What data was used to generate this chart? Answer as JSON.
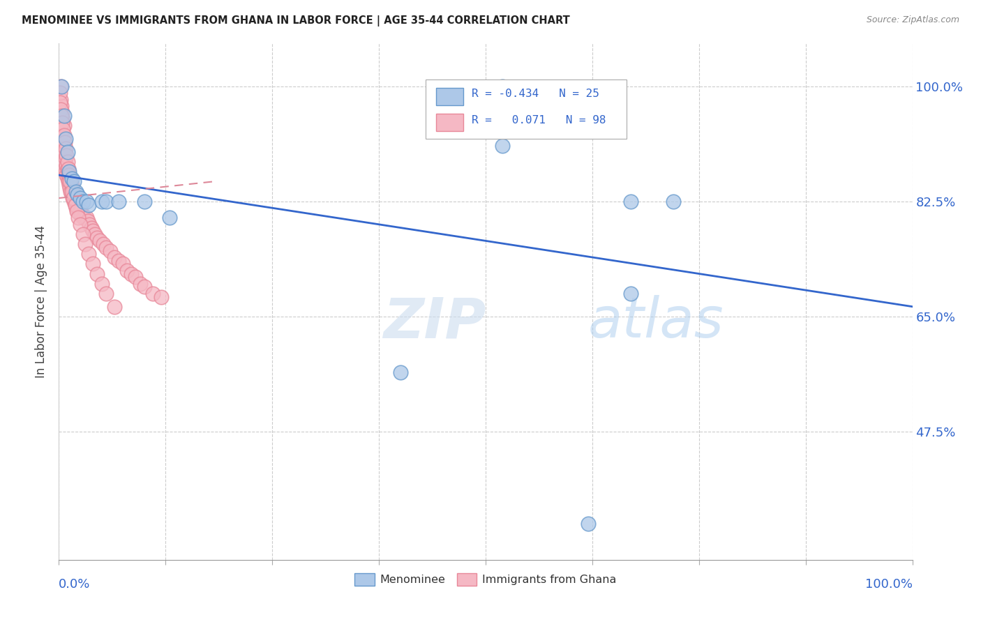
{
  "title": "MENOMINEE VS IMMIGRANTS FROM GHANA IN LABOR FORCE | AGE 35-44 CORRELATION CHART",
  "source": "Source: ZipAtlas.com",
  "ylabel": "In Labor Force | Age 35-44",
  "y_tick_labels": [
    "47.5%",
    "65.0%",
    "82.5%",
    "100.0%"
  ],
  "y_tick_values": [
    0.475,
    0.65,
    0.825,
    1.0
  ],
  "x_min": 0.0,
  "x_max": 1.0,
  "y_min": 0.28,
  "y_max": 1.065,
  "menominee_color": "#adc8e8",
  "ghana_color": "#f5b8c4",
  "menominee_edge_color": "#6699cc",
  "ghana_edge_color": "#e88899",
  "line_blue_color": "#3366cc",
  "line_pink_color": "#dd8899",
  "watermark_zip": "ZIP",
  "watermark_atlas": "atlas",
  "legend_text1": "R = -0.434   N = 25",
  "legend_text2": "R =   0.071   N = 98",
  "menominee_x": [
    0.003,
    0.006,
    0.008,
    0.01,
    0.012,
    0.015,
    0.018,
    0.02,
    0.022,
    0.025,
    0.028,
    0.032,
    0.035,
    0.05,
    0.055,
    0.07,
    0.1,
    0.13,
    0.52,
    0.52,
    0.67,
    0.72,
    0.67,
    0.4,
    0.62
  ],
  "menominee_y": [
    1.0,
    0.955,
    0.92,
    0.9,
    0.87,
    0.86,
    0.855,
    0.84,
    0.835,
    0.83,
    0.825,
    0.825,
    0.82,
    0.825,
    0.825,
    0.825,
    0.825,
    0.8,
    1.0,
    0.91,
    0.825,
    0.825,
    0.685,
    0.565,
    0.335
  ],
  "ghana_x": [
    0.002,
    0.002,
    0.003,
    0.003,
    0.004,
    0.004,
    0.005,
    0.005,
    0.006,
    0.006,
    0.006,
    0.007,
    0.007,
    0.008,
    0.008,
    0.009,
    0.009,
    0.01,
    0.01,
    0.011,
    0.011,
    0.012,
    0.012,
    0.013,
    0.013,
    0.014,
    0.014,
    0.015,
    0.015,
    0.016,
    0.016,
    0.017,
    0.018,
    0.018,
    0.019,
    0.019,
    0.02,
    0.02,
    0.021,
    0.022,
    0.022,
    0.023,
    0.024,
    0.025,
    0.025,
    0.026,
    0.027,
    0.028,
    0.03,
    0.032,
    0.034,
    0.036,
    0.038,
    0.04,
    0.042,
    0.045,
    0.048,
    0.052,
    0.055,
    0.06,
    0.065,
    0.07,
    0.075,
    0.08,
    0.085,
    0.09,
    0.095,
    0.1,
    0.11,
    0.12,
    0.001,
    0.001,
    0.002,
    0.003,
    0.004,
    0.005,
    0.006,
    0.007,
    0.008,
    0.009,
    0.01,
    0.011,
    0.012,
    0.013,
    0.015,
    0.017,
    0.019,
    0.021,
    0.023,
    0.025,
    0.028,
    0.031,
    0.035,
    0.04,
    0.045,
    0.05,
    0.055,
    0.065
  ],
  "ghana_y": [
    1.0,
    0.98,
    0.97,
    0.95,
    0.96,
    0.93,
    0.95,
    0.92,
    0.94,
    0.91,
    0.885,
    0.9,
    0.875,
    0.89,
    0.87,
    0.88,
    0.865,
    0.875,
    0.86,
    0.87,
    0.855,
    0.865,
    0.85,
    0.86,
    0.845,
    0.855,
    0.84,
    0.85,
    0.835,
    0.845,
    0.83,
    0.84,
    0.835,
    0.825,
    0.83,
    0.82,
    0.825,
    0.815,
    0.82,
    0.815,
    0.81,
    0.815,
    0.81,
    0.81,
    0.805,
    0.81,
    0.805,
    0.8,
    0.8,
    0.8,
    0.795,
    0.79,
    0.785,
    0.78,
    0.775,
    0.77,
    0.765,
    0.76,
    0.755,
    0.75,
    0.74,
    0.735,
    0.73,
    0.72,
    0.715,
    0.71,
    0.7,
    0.695,
    0.685,
    0.68,
    0.99,
    0.975,
    0.965,
    0.955,
    0.945,
    0.935,
    0.925,
    0.915,
    0.905,
    0.895,
    0.885,
    0.875,
    0.865,
    0.855,
    0.84,
    0.83,
    0.82,
    0.81,
    0.8,
    0.79,
    0.775,
    0.76,
    0.745,
    0.73,
    0.715,
    0.7,
    0.685,
    0.665
  ],
  "blue_line_x": [
    0.0,
    1.0
  ],
  "blue_line_y": [
    0.865,
    0.665
  ],
  "pink_line_x": [
    0.0,
    0.18
  ],
  "pink_line_y": [
    0.83,
    0.855
  ]
}
